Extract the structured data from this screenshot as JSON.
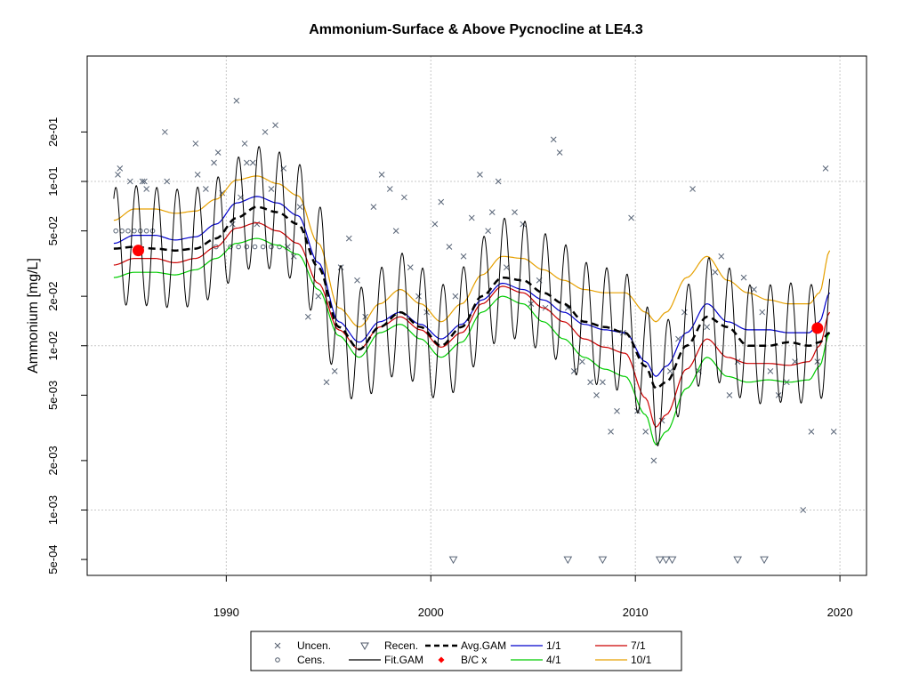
{
  "chart_data": {
    "type": "line",
    "title": "Ammonium-Surface & Above Pycnocline at LE4.3",
    "xlabel": "",
    "ylabel": "Ammonium [mg/L]",
    "y_scale": "log",
    "xlim": [
      1983.2,
      2021.3
    ],
    "ylim": [
      0.0004,
      0.58
    ],
    "x_ticks": [
      1990,
      2000,
      2010,
      2020
    ],
    "x_tick_labels": [
      "1990",
      "2000",
      "2010",
      "2020"
    ],
    "y_ticks": [
      0.0005,
      0.001,
      0.002,
      0.005,
      0.01,
      0.02,
      0.05,
      0.1,
      0.2
    ],
    "y_tick_labels": [
      "5e-04",
      "1e-03",
      "2e-03",
      "5e-03",
      "1e-02",
      "2e-02",
      "5e-02",
      "1e-01",
      "2e-01"
    ],
    "grid": true,
    "legend_placement": "bottom-center",
    "legend": [
      {
        "label": "Uncen.",
        "kind": "x-marker",
        "color": "#505a6a"
      },
      {
        "label": "Cens.",
        "kind": "circle-marker",
        "color": "#505a6a"
      },
      {
        "label": "Recen.",
        "kind": "triangle-marker",
        "color": "#505a6a"
      },
      {
        "label": "Fit.GAM",
        "kind": "line",
        "color": "#000000"
      },
      {
        "label": "Avg.GAM",
        "kind": "dashed-line",
        "color": "#000000"
      },
      {
        "label": "B/C x",
        "kind": "diamond-marker",
        "color": "#ff0000"
      },
      {
        "label": "1/1",
        "kind": "line",
        "color": "#0000cc"
      },
      {
        "label": "4/1",
        "kind": "line",
        "color": "#00cc00"
      },
      {
        "label": "7/1",
        "kind": "line",
        "color": "#cc0000"
      },
      {
        "label": "10/1",
        "kind": "line",
        "color": "#e6a000"
      }
    ],
    "series": [
      {
        "name": "Avg.GAM",
        "color": "#000000",
        "style": "dashed",
        "x": [
          1984.5,
          1985.5,
          1986.5,
          1987.5,
          1988.5,
          1989.5,
          1990.5,
          1991.5,
          1992.5,
          1993.5,
          1994.5,
          1995.5,
          1996.5,
          1997.5,
          1998.5,
          1999.5,
          2000.5,
          2001.5,
          2002.5,
          2003.5,
          2004.5,
          2005.5,
          2006.5,
          2007.5,
          2008.5,
          2009.5,
          2010.5,
          2011.0,
          2011.5,
          2012.5,
          2013.5,
          2014.5,
          2015.5,
          2016.5,
          2017.5,
          2018.5,
          2019.0,
          2019.5
        ],
        "y": [
          0.039,
          0.04,
          0.039,
          0.038,
          0.039,
          0.045,
          0.06,
          0.07,
          0.065,
          0.055,
          0.03,
          0.013,
          0.0095,
          0.013,
          0.016,
          0.013,
          0.01,
          0.013,
          0.02,
          0.026,
          0.025,
          0.021,
          0.018,
          0.014,
          0.013,
          0.012,
          0.0075,
          0.0055,
          0.006,
          0.01,
          0.015,
          0.013,
          0.01,
          0.01,
          0.0105,
          0.01,
          0.0105,
          0.012
        ]
      },
      {
        "name": "1/1",
        "color": "#0000cc",
        "style": "solid",
        "x": [
          1984.5,
          1985.5,
          1986.5,
          1987.5,
          1988.5,
          1989.5,
          1990.5,
          1991.5,
          1992.5,
          1993.5,
          1994.5,
          1995.5,
          1996.5,
          1997.5,
          1998.5,
          1999.5,
          2000.5,
          2001.5,
          2002.5,
          2003.5,
          2004.5,
          2005.5,
          2006.5,
          2007.5,
          2008.5,
          2009.5,
          2010.5,
          2011.0,
          2011.5,
          2012.5,
          2013.5,
          2014.5,
          2015.5,
          2016.5,
          2017.5,
          2018.5,
          2019.0,
          2019.5
        ],
        "y": [
          0.042,
          0.047,
          0.047,
          0.044,
          0.046,
          0.055,
          0.074,
          0.081,
          0.074,
          0.062,
          0.032,
          0.014,
          0.0105,
          0.014,
          0.016,
          0.0135,
          0.011,
          0.0135,
          0.019,
          0.024,
          0.022,
          0.019,
          0.016,
          0.0135,
          0.0125,
          0.012,
          0.008,
          0.0065,
          0.0075,
          0.012,
          0.018,
          0.014,
          0.0125,
          0.0125,
          0.012,
          0.012,
          0.014,
          0.021
        ]
      },
      {
        "name": "7/1",
        "color": "#cc0000",
        "style": "solid",
        "x": [
          1984.5,
          1985.5,
          1986.5,
          1987.5,
          1988.5,
          1989.5,
          1990.5,
          1991.5,
          1992.5,
          1993.5,
          1994.5,
          1995.5,
          1996.5,
          1997.5,
          1998.5,
          1999.5,
          2000.5,
          2001.5,
          2002.5,
          2003.5,
          2004.5,
          2005.5,
          2006.5,
          2007.5,
          2008.5,
          2009.5,
          2010.5,
          2011.0,
          2011.5,
          2012.5,
          2013.5,
          2014.5,
          2015.5,
          2016.5,
          2017.5,
          2018.5,
          2019.0,
          2019.5
        ],
        "y": [
          0.031,
          0.034,
          0.034,
          0.032,
          0.034,
          0.04,
          0.052,
          0.056,
          0.05,
          0.042,
          0.024,
          0.0125,
          0.0095,
          0.013,
          0.015,
          0.0125,
          0.0098,
          0.012,
          0.018,
          0.023,
          0.021,
          0.017,
          0.014,
          0.011,
          0.0098,
          0.009,
          0.0048,
          0.0032,
          0.0038,
          0.0072,
          0.011,
          0.0085,
          0.0078,
          0.0078,
          0.0076,
          0.008,
          0.01,
          0.016
        ]
      },
      {
        "name": "4/1",
        "color": "#00cc00",
        "style": "solid",
        "x": [
          1984.5,
          1985.5,
          1986.5,
          1987.5,
          1988.5,
          1989.5,
          1990.5,
          1991.5,
          1992.5,
          1993.5,
          1994.5,
          1995.5,
          1996.5,
          1997.5,
          1998.5,
          1999.5,
          2000.5,
          2001.5,
          2002.5,
          2003.5,
          2004.5,
          2005.5,
          2006.5,
          2007.5,
          2008.5,
          2009.5,
          2010.5,
          2011.0,
          2011.5,
          2012.5,
          2013.5,
          2014.5,
          2015.5,
          2016.5,
          2017.5,
          2018.5,
          2019.0,
          2019.5
        ],
        "y": [
          0.026,
          0.028,
          0.028,
          0.027,
          0.029,
          0.034,
          0.042,
          0.045,
          0.041,
          0.036,
          0.022,
          0.0115,
          0.0085,
          0.012,
          0.0135,
          0.011,
          0.0085,
          0.0105,
          0.016,
          0.02,
          0.018,
          0.014,
          0.011,
          0.0085,
          0.0072,
          0.0065,
          0.0038,
          0.0025,
          0.003,
          0.0055,
          0.0085,
          0.0065,
          0.006,
          0.0062,
          0.006,
          0.0062,
          0.0075,
          0.012
        ]
      },
      {
        "name": "10/1",
        "color": "#e6a000",
        "style": "solid",
        "x": [
          1984.5,
          1985.5,
          1986.5,
          1987.5,
          1988.5,
          1989.5,
          1990.5,
          1991.5,
          1992.5,
          1993.5,
          1994.5,
          1995.5,
          1996.5,
          1997.5,
          1998.5,
          1999.5,
          2000.5,
          2001.5,
          2002.5,
          2003.5,
          2004.5,
          2005.5,
          2006.5,
          2007.5,
          2008.5,
          2009.5,
          2010.5,
          2011.0,
          2011.5,
          2012.5,
          2013.5,
          2014.5,
          2015.5,
          2016.5,
          2017.5,
          2018.5,
          2019.0,
          2019.5
        ],
        "y": [
          0.058,
          0.068,
          0.068,
          0.064,
          0.066,
          0.078,
          0.102,
          0.108,
          0.097,
          0.082,
          0.042,
          0.017,
          0.013,
          0.018,
          0.022,
          0.018,
          0.014,
          0.018,
          0.027,
          0.035,
          0.034,
          0.029,
          0.025,
          0.022,
          0.021,
          0.021,
          0.016,
          0.014,
          0.016,
          0.026,
          0.035,
          0.025,
          0.021,
          0.019,
          0.018,
          0.018,
          0.021,
          0.038
        ]
      },
      {
        "name": "Fit.GAM",
        "color": "#000000",
        "style": "solid",
        "x": [
          1984.5,
          1985.5,
          1986.5,
          1987.5,
          1988.5,
          1989.5,
          1990.5,
          1991.5,
          1992.5,
          1993.5,
          1994.5,
          1995.5,
          1996.5,
          1997.5,
          1998.5,
          1999.5,
          2000.5,
          2001.5,
          2002.5,
          2003.5,
          2004.5,
          2005.5,
          2006.5,
          2007.5,
          2008.5,
          2009.5,
          2010.5,
          2011.0,
          2011.5,
          2012.5,
          2013.5,
          2014.5,
          2015.5,
          2016.5,
          2017.5,
          2018.5,
          2019.0,
          2019.5
        ],
        "y": [
          0.04,
          0.041,
          0.04,
          0.039,
          0.04,
          0.046,
          0.061,
          0.071,
          0.066,
          0.056,
          0.031,
          0.0135,
          0.0098,
          0.013,
          0.016,
          0.013,
          0.0102,
          0.013,
          0.02,
          0.026,
          0.025,
          0.021,
          0.018,
          0.014,
          0.013,
          0.012,
          0.0077,
          0.0056,
          0.0062,
          0.0102,
          0.015,
          0.013,
          0.0102,
          0.0102,
          0.0105,
          0.0102,
          0.0108,
          0.013
        ],
        "seasonal_amplitude_ratio": 2.3
      },
      {
        "name": "B/C x",
        "color": "#ff0000",
        "style": "point",
        "x": [
          1985.7,
          2018.9
        ],
        "y": [
          0.038,
          0.0128
        ]
      }
    ],
    "points_uncen": {
      "x": [
        1984.7,
        1984.8,
        1985.3,
        1985.9,
        1986.0,
        1986.1,
        1987.0,
        1987.1,
        1988.5,
        1988.6,
        1989.0,
        1989.4,
        1989.6,
        1989.8,
        1990.3,
        1990.5,
        1990.7,
        1990.9,
        1991.0,
        1991.3,
        1991.5,
        1991.9,
        1992.2,
        1992.4,
        1992.8,
        1993.0,
        1993.3,
        1993.6,
        1994.0,
        1994.5,
        1994.9,
        1995.3,
        1995.6,
        1996.0,
        1996.4,
        1996.8,
        1997.2,
        1997.6,
        1998.0,
        1998.3,
        1998.7,
        1999.0,
        1999.4,
        1999.8,
        2000.2,
        2000.5,
        2000.9,
        2001.2,
        2001.6,
        2002.0,
        2002.4,
        2002.8,
        2003.0,
        2003.3,
        2003.7,
        2004.1,
        2004.5,
        2004.9,
        2005.3,
        2005.6,
        2006.0,
        2006.3,
        2006.7,
        2007.0,
        2007.4,
        2007.8,
        2008.1,
        2008.4,
        2008.8,
        2009.1,
        2009.4,
        2009.8,
        2010.1,
        2010.5,
        2010.9,
        2011.3,
        2011.7,
        2012.1,
        2012.4,
        2012.8,
        2013.1,
        2013.5,
        2013.9,
        2014.2,
        2014.6,
        2015.0,
        2015.3,
        2015.8,
        2016.2,
        2016.6,
        2017.0,
        2017.4,
        2017.8,
        2018.2,
        2018.6,
        2018.9,
        2019.3,
        2019.7
      ],
      "y": [
        0.11,
        0.12,
        0.1,
        0.1,
        0.1,
        0.09,
        0.2,
        0.1,
        0.17,
        0.11,
        0.09,
        0.13,
        0.15,
        0.085,
        0.055,
        0.31,
        0.08,
        0.17,
        0.13,
        0.13,
        0.055,
        0.2,
        0.09,
        0.22,
        0.12,
        0.04,
        0.035,
        0.07,
        0.015,
        0.02,
        0.006,
        0.007,
        0.03,
        0.045,
        0.025,
        0.015,
        0.07,
        0.11,
        0.09,
        0.05,
        0.08,
        0.03,
        0.02,
        0.016,
        0.055,
        0.075,
        0.04,
        0.02,
        0.035,
        0.06,
        0.11,
        0.05,
        0.065,
        0.1,
        0.03,
        0.065,
        0.055,
        0.018,
        0.025,
        0.017,
        0.18,
        0.15,
        0.017,
        0.007,
        0.008,
        0.006,
        0.005,
        0.006,
        0.003,
        0.004,
        0.012,
        0.06,
        0.004,
        0.003,
        0.002,
        0.0035,
        0.007,
        0.011,
        0.016,
        0.09,
        0.007,
        0.013,
        0.028,
        0.035,
        0.005,
        0.008,
        0.026,
        0.022,
        0.016,
        0.007,
        0.005,
        0.006,
        0.008,
        0.001,
        0.003,
        0.008,
        0.12,
        0.003
      ]
    },
    "points_cens": {
      "x": [
        1984.6,
        1984.9,
        1985.2,
        1985.5,
        1985.8,
        1986.1,
        1986.4,
        1989.5,
        1990.2,
        1990.6,
        1991.0,
        1991.4,
        1991.8,
        1992.2,
        1992.6
      ],
      "y": [
        0.05,
        0.05,
        0.05,
        0.05,
        0.05,
        0.05,
        0.05,
        0.04,
        0.04,
        0.04,
        0.04,
        0.04,
        0.04,
        0.04,
        0.04
      ]
    },
    "points_recen": {
      "x": [
        2001.1,
        2006.7,
        2008.4,
        2011.2,
        2011.5,
        2011.8,
        2015.0,
        2016.3
      ],
      "y": [
        0.0005,
        0.0005,
        0.0005,
        0.0005,
        0.0005,
        0.0005,
        0.0005,
        0.0005
      ]
    }
  }
}
